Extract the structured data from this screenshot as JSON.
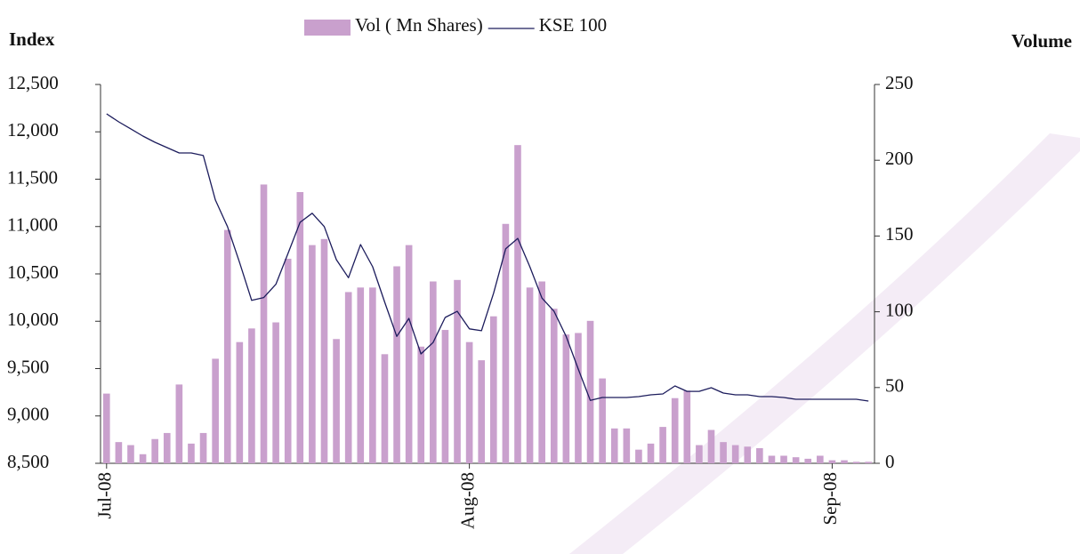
{
  "chart_data": {
    "type": "bar-line",
    "y_label": "Index",
    "y2_label": "Volume",
    "categories": [
      "Jul-08",
      null,
      null,
      null,
      null,
      null,
      null,
      null,
      null,
      null,
      null,
      null,
      null,
      null,
      null,
      null,
      null,
      null,
      null,
      null,
      null,
      null,
      null,
      null,
      null,
      null,
      null,
      null,
      null,
      null,
      "Aug-08",
      null,
      null,
      null,
      null,
      null,
      null,
      null,
      null,
      null,
      null,
      null,
      null,
      null,
      null,
      null,
      null,
      null,
      null,
      null,
      null,
      null,
      null,
      null,
      null,
      null,
      null,
      null,
      null,
      null,
      "Sep-08",
      null,
      null,
      null
    ],
    "series": [
      {
        "name": "Vol ( Mn Shares)",
        "color": "#c9a0cd",
        "axis": "y2",
        "kind": "bar",
        "values": [
          46,
          14,
          12,
          6,
          16,
          20,
          52,
          13,
          20,
          69,
          154,
          80,
          89,
          184,
          93,
          135,
          179,
          144,
          148,
          82,
          113,
          116,
          116,
          72,
          130,
          144,
          77,
          120,
          88,
          121,
          80,
          68,
          97,
          158,
          210,
          116,
          120,
          102,
          85,
          86,
          94,
          56,
          23,
          23,
          9,
          13,
          24,
          43,
          48,
          12,
          22,
          14,
          12,
          11,
          10,
          5,
          5,
          4,
          3,
          5,
          2,
          2,
          1,
          1
        ]
      },
      {
        "name": "KSE 100",
        "color": "#1c1c5c",
        "axis": "y",
        "kind": "line",
        "values": [
          12190,
          12106,
          12031,
          11955,
          11890,
          11833,
          11777,
          11777,
          11750,
          11280,
          11000,
          10620,
          10220,
          10250,
          10390,
          10715,
          11045,
          11140,
          11000,
          10650,
          10460,
          10810,
          10575,
          10200,
          9840,
          10030,
          9655,
          9775,
          10040,
          10105,
          9920,
          9900,
          10295,
          10765,
          10875,
          10575,
          10245,
          10105,
          9840,
          9495,
          9165,
          9195,
          9195,
          9195,
          9204,
          9223,
          9232,
          9317,
          9260,
          9260,
          9298,
          9242,
          9223,
          9223,
          9204,
          9204,
          9195,
          9176,
          9176,
          9176,
          9176,
          9176,
          9176,
          9157
        ]
      }
    ],
    "ylim": [
      8500,
      12500
    ],
    "yticks": [
      {
        "value": 8500,
        "label": "8,500"
      },
      {
        "value": 9000,
        "label": "9,000"
      },
      {
        "value": 9500,
        "label": "9,500"
      },
      {
        "value": 10000,
        "label": "10,000"
      },
      {
        "value": 10500,
        "label": "10,500"
      },
      {
        "value": 11000,
        "label": "11,000"
      },
      {
        "value": 11500,
        "label": "11,500"
      },
      {
        "value": 12000,
        "label": "12,000"
      },
      {
        "value": 12500,
        "label": "12,500"
      }
    ],
    "y2lim": [
      0,
      250
    ],
    "y2ticks": [
      0,
      50,
      100,
      150,
      200,
      250
    ],
    "grid": false,
    "legend": "top"
  }
}
